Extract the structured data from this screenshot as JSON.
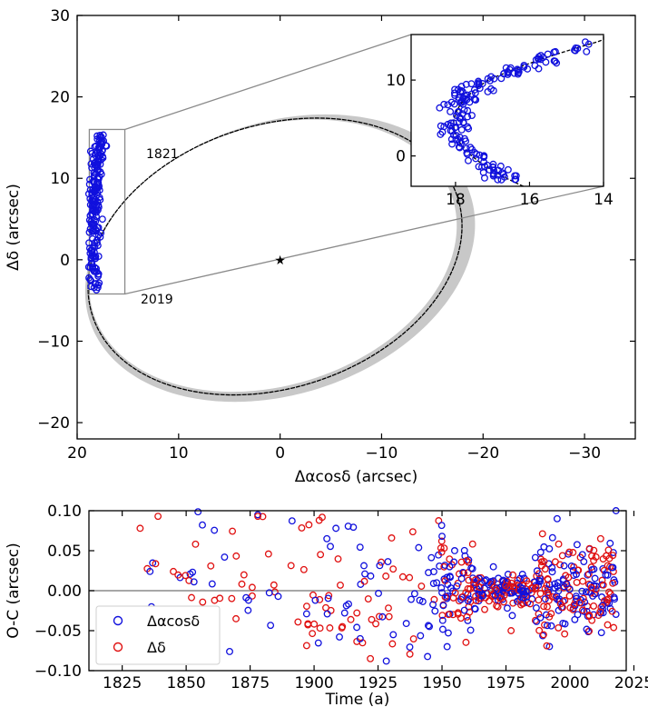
{
  "chart_data": [
    {
      "type": "scatter",
      "title": "",
      "xlabel": "Δαcosδ (arcsec)",
      "ylabel": "Δδ (arcsec)",
      "xlim": [
        20,
        -35
      ],
      "ylim": [
        -22,
        30
      ],
      "x_inverted": true,
      "xticks": [
        20,
        10,
        0,
        -10,
        -20,
        -30
      ],
      "xtick_labels": [
        "20",
        "10",
        "0",
        "−10",
        "−20",
        "−30"
      ],
      "yticks": [
        -20,
        -10,
        0,
        10,
        20,
        30
      ],
      "ytick_labels": [
        "−20",
        "−10",
        "0",
        "10",
        "20",
        "30"
      ],
      "annotations": [
        {
          "text": "1821",
          "x": 14,
          "y": 13
        },
        {
          "text": "2019",
          "x": 14.3,
          "y": -3.8
        }
      ],
      "orbit": {
        "description_values_in_arcsec": true,
        "center": [
          0.5,
          0.4
        ],
        "semi_axis_a": 19.7,
        "semi_axis_b": 15.5,
        "rotation_deg": -35
      },
      "primary_star": {
        "x": 0,
        "y": 0
      },
      "zoom_box": {
        "x": [
          18.8,
          15.3
        ],
        "y": [
          -4.2,
          16
        ]
      },
      "series": [
        {
          "name": "Δαcosδ",
          "color": "#1010dd",
          "marker": "open-circle",
          "points": "arc of ~200 observations along x 17–19, y −3.8 to 15.5"
        }
      ]
    },
    {
      "type": "scatter",
      "title": "",
      "inset": true,
      "xlim": [
        19.2,
        14
      ],
      "ylim": [
        -4,
        16
      ],
      "xticks": [
        18,
        16,
        14
      ],
      "xtick_labels": [
        "18",
        "16",
        "14"
      ],
      "yticks": [
        0,
        10
      ],
      "ytick_labels": [
        "0",
        "10"
      ],
      "grid": false
    },
    {
      "type": "scatter",
      "title": "",
      "xlabel": "Time (a)",
      "ylabel": "O-C (arcsec)",
      "xlim": [
        1812,
        2022
      ],
      "ylim": [
        -0.1,
        0.1
      ],
      "xticks": [
        1825,
        1850,
        1875,
        1900,
        1925,
        1950,
        1975,
        2000,
        2025
      ],
      "xtick_labels": [
        "1825",
        "1850",
        "1875",
        "1900",
        "1925",
        "1950",
        "1975",
        "2000",
        "2025"
      ],
      "yticks": [
        -0.1,
        -0.05,
        0,
        0.05,
        0.1
      ],
      "ytick_labels": [
        "−0.10",
        "−0.05",
        "0.00",
        "0.05",
        "0.10"
      ],
      "zero_line": true,
      "legend_position": "bottom-left",
      "series": [
        {
          "name": "Δαcosδ",
          "color": "#1010dd",
          "marker": "open-circle"
        },
        {
          "name": "Δδ",
          "color": "#e01010",
          "marker": "open-circle"
        }
      ],
      "sample_points": [
        {
          "series": 0,
          "x": 1865,
          "y": 0.042
        },
        {
          "series": 0,
          "x": 1878,
          "y": 0.095
        },
        {
          "series": 0,
          "x": 1905,
          "y": 0.065
        },
        {
          "series": 0,
          "x": 1918,
          "y": -0.06
        },
        {
          "series": 0,
          "x": 1950,
          "y": 0.068
        },
        {
          "series": 0,
          "x": 1952,
          "y": -0.07
        },
        {
          "series": 0,
          "x": 1995,
          "y": 0.09
        },
        {
          "series": 0,
          "x": 2018,
          "y": 0.1
        },
        {
          "series": 1,
          "x": 1832,
          "y": 0.078
        },
        {
          "series": 1,
          "x": 1839,
          "y": 0.093
        },
        {
          "series": 1,
          "x": 1845,
          "y": 0.024
        },
        {
          "series": 1,
          "x": 1878,
          "y": 0.093
        },
        {
          "series": 1,
          "x": 1902,
          "y": 0.088
        },
        {
          "series": 1,
          "x": 1922,
          "y": -0.085
        },
        {
          "series": 1,
          "x": 1977,
          "y": -0.05
        },
        {
          "series": 1,
          "x": 2012,
          "y": 0.065
        }
      ]
    }
  ],
  "legend": {
    "items": [
      {
        "label": "Δαcosδ",
        "color": "#1010dd"
      },
      {
        "label": "Δδ",
        "color": "#e01010"
      }
    ]
  }
}
